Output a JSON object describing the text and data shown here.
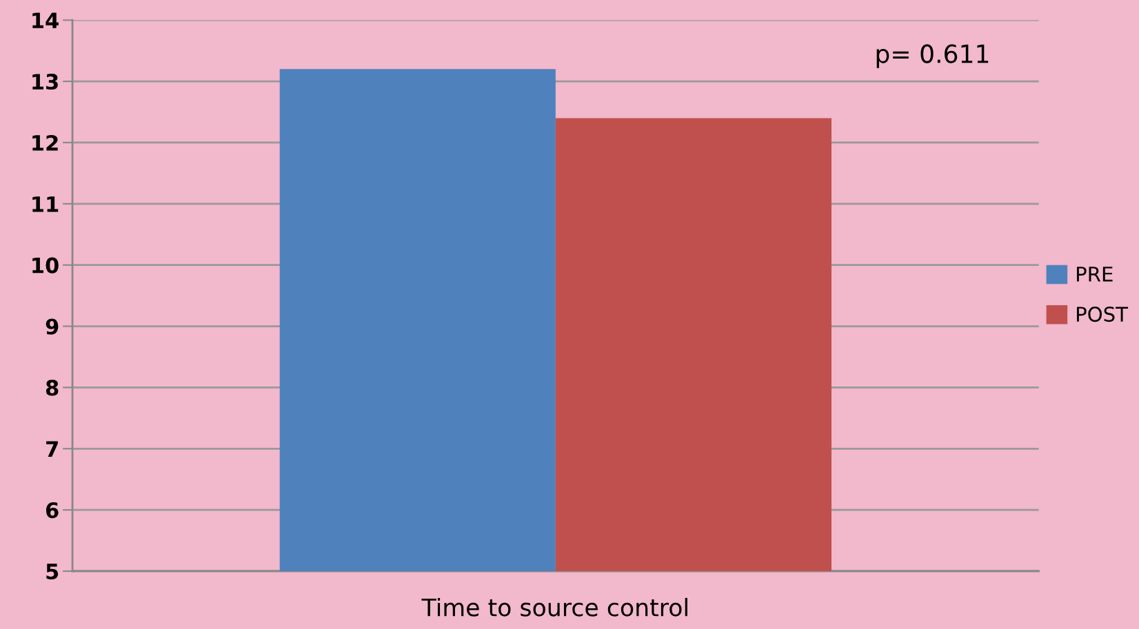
{
  "chart_data": {
    "type": "bar",
    "categories": [
      "Time to source control"
    ],
    "series": [
      {
        "name": "PRE",
        "color": "#4f81bd",
        "values": [
          13.2
        ]
      },
      {
        "name": "POST",
        "color": "#c0504d",
        "values": [
          12.4
        ]
      }
    ],
    "ylim": [
      5,
      14
    ],
    "yticks": [
      5,
      6,
      7,
      8,
      9,
      10,
      11,
      12,
      13,
      14
    ],
    "grid": "y",
    "legend": "right",
    "annotations": [
      "p= 0.611"
    ]
  }
}
